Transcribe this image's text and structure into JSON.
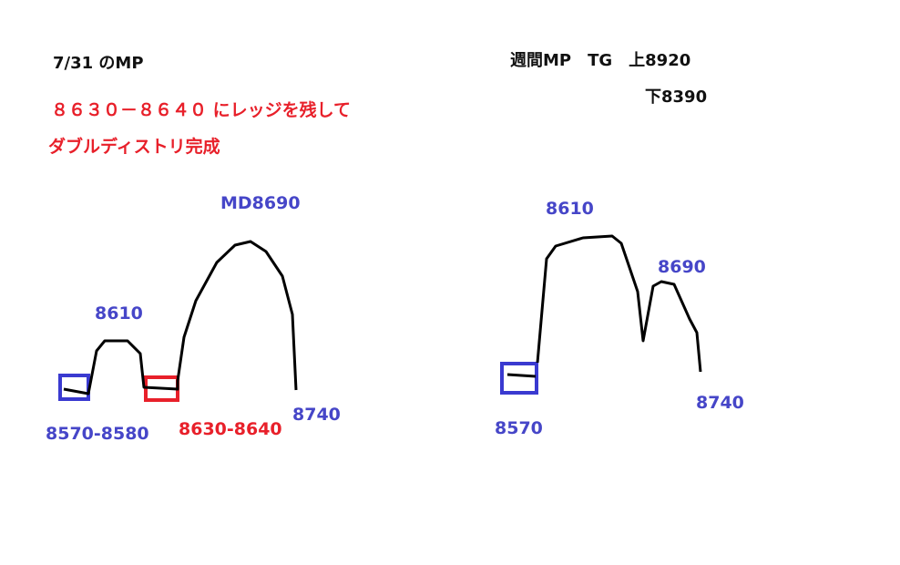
{
  "left": {
    "title": "7/31 のMP",
    "note_line1": "８６３０－８６４０ にレッジを残して",
    "note_line2": "ダブルディストリ完成",
    "labels": {
      "md": "MD8690",
      "upper_dist_high": "8610",
      "low_box": "8570-8580",
      "ledge_box": "8630-8640",
      "bottom": "8740"
    }
  },
  "right": {
    "title": "週間MP　TG　上8920",
    "target_low": "下8390",
    "labels": {
      "high": "8610",
      "second_peak": "8690",
      "low_box": "8570",
      "bottom": "8740"
    }
  },
  "colors": {
    "text": "#111111",
    "red": "#e8202a",
    "blue": "#4646c8",
    "stroke": "#000000",
    "box_blue": "#3a3ad0",
    "box_red": "#e8202a"
  }
}
